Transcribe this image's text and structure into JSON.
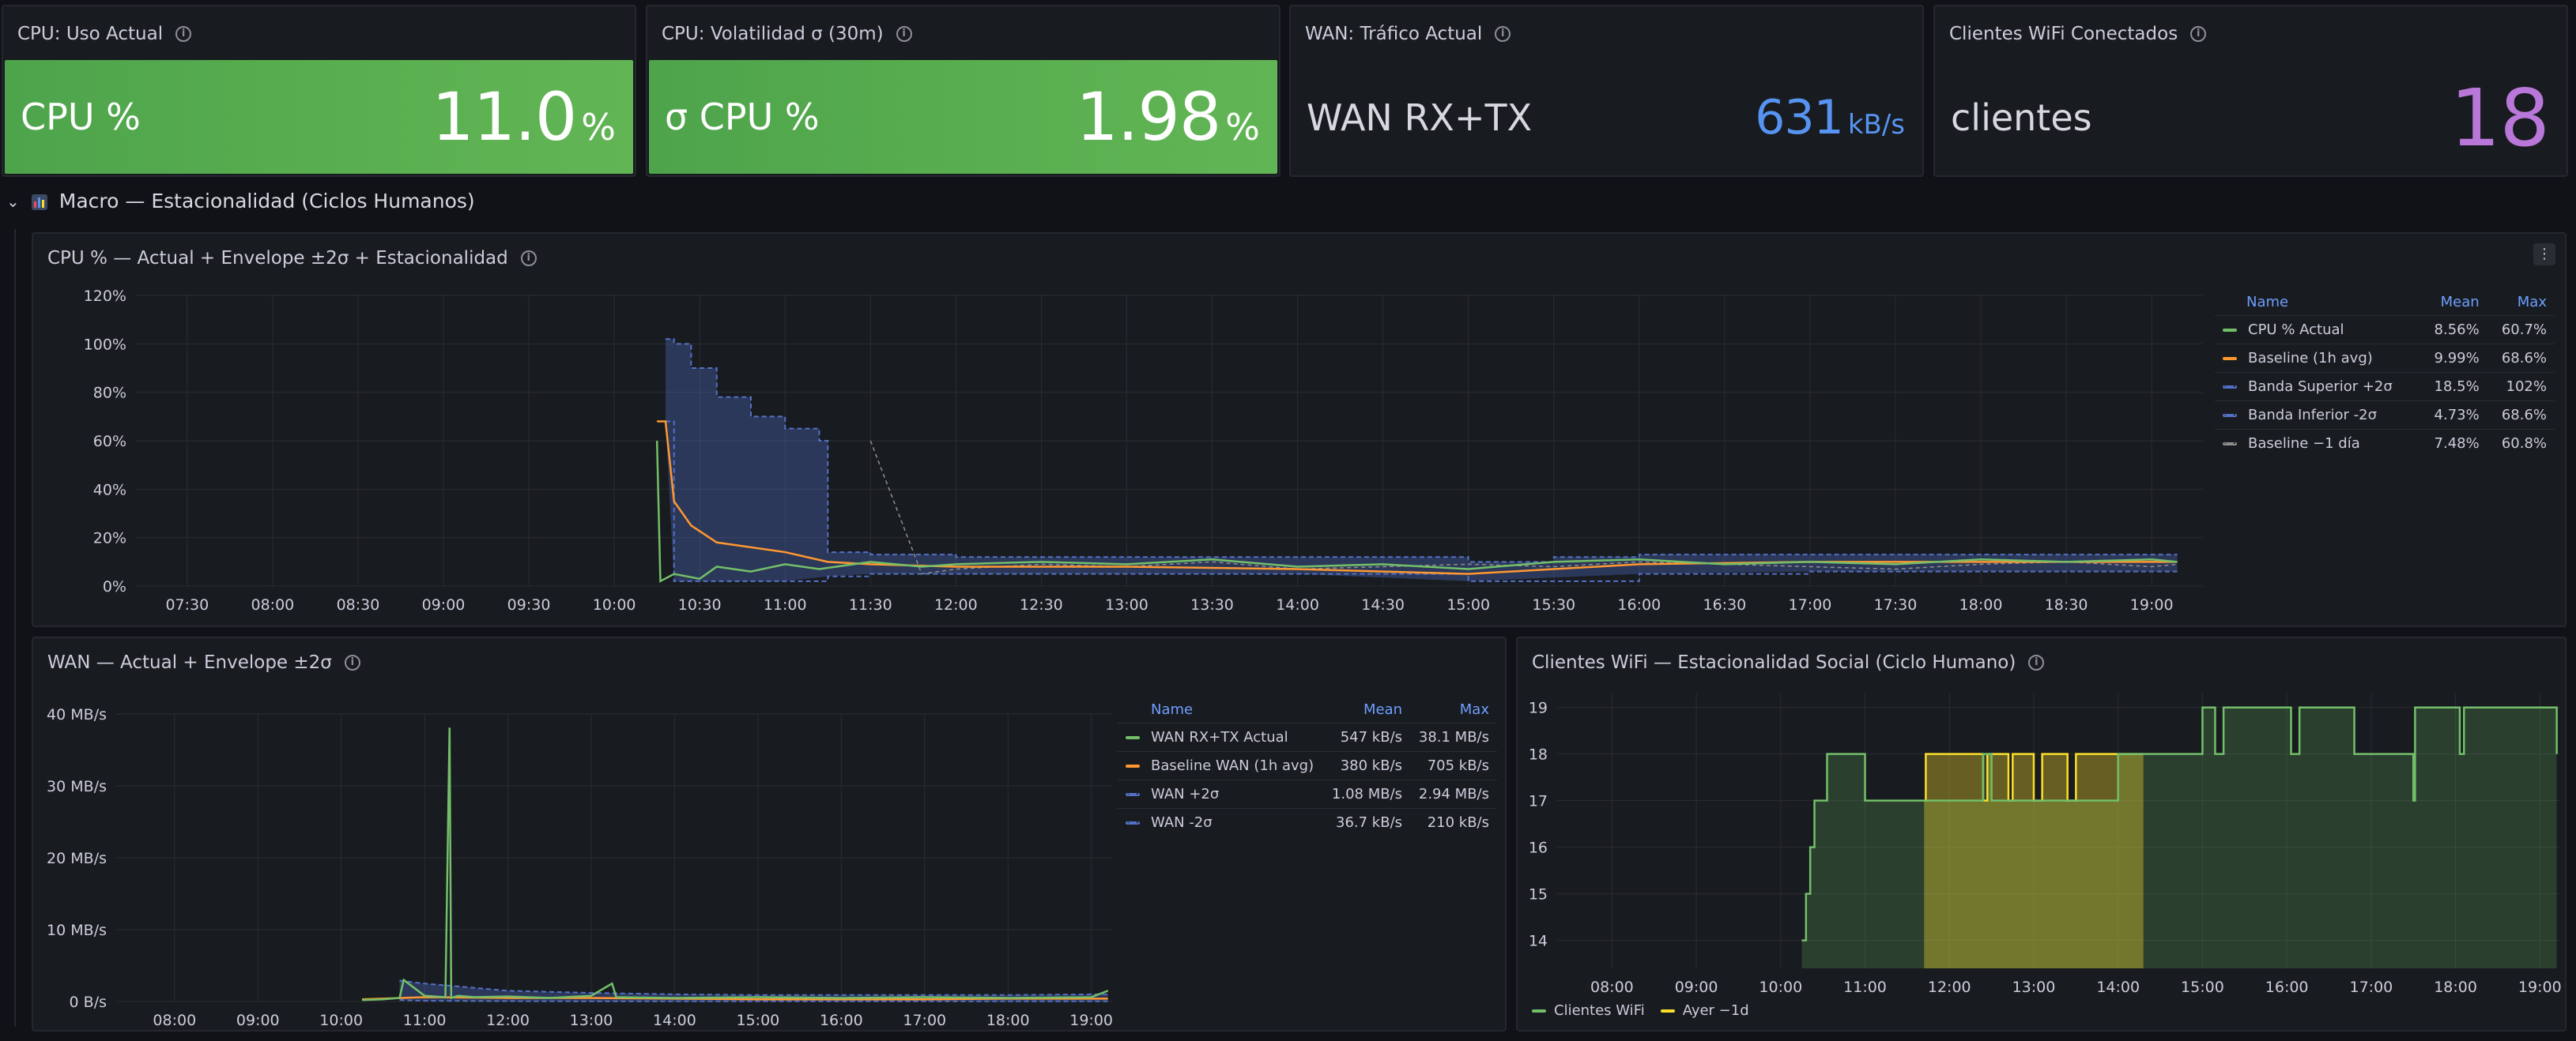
{
  "stats": [
    {
      "title": "CPU: Uso Actual",
      "label": "CPU %",
      "value": "11.0",
      "unit": "%"
    },
    {
      "title": "CPU: Volatilidad σ (30m)",
      "label": "σ CPU %",
      "value": "1.98",
      "unit": "%"
    },
    {
      "title": "WAN: Tráfico Actual",
      "label": "WAN RX+TX",
      "value": "631",
      "unit": "kB/s"
    },
    {
      "title": "Clientes WiFi Conectados",
      "label": "clientes",
      "value": "18",
      "unit": ""
    }
  ],
  "row": {
    "title": "Macro — Estacionalidad (Ciclos Humanos)"
  },
  "colors": {
    "green": "#73bf69",
    "orange": "#ff9830",
    "blue": "#5470c6",
    "gray": "#8e8e8e",
    "yellow": "#fade2a",
    "purple": "#b877d9",
    "wan_blue": "#5794f2"
  },
  "cpu_panel": {
    "title": "CPU % — Actual + Envelope ±2σ + Estacionalidad",
    "legend_headers": {
      "name": "Name",
      "mean": "Mean",
      "max": "Max"
    },
    "legend": [
      {
        "name": "CPU % Actual",
        "mean": "8.56%",
        "max": "60.7%"
      },
      {
        "name": "Baseline (1h avg)",
        "mean": "9.99%",
        "max": "68.6%"
      },
      {
        "name": "Banda Superior +2σ",
        "mean": "18.5%",
        "max": "102%"
      },
      {
        "name": "Banda Inferior -2σ",
        "mean": "4.73%",
        "max": "68.6%"
      },
      {
        "name": "Baseline −1 día",
        "mean": "7.48%",
        "max": "60.8%"
      }
    ]
  },
  "wan_panel": {
    "title": "WAN — Actual + Envelope ±2σ",
    "legend_headers": {
      "name": "Name",
      "mean": "Mean",
      "max": "Max"
    },
    "legend": [
      {
        "name": "WAN RX+TX Actual",
        "mean": "547 kB/s",
        "max": "38.1 MB/s"
      },
      {
        "name": "Baseline WAN (1h avg)",
        "mean": "380 kB/s",
        "max": "705 kB/s"
      },
      {
        "name": "WAN +2σ",
        "mean": "1.08 MB/s",
        "max": "2.94 MB/s"
      },
      {
        "name": "WAN -2σ",
        "mean": "36.7 kB/s",
        "max": "210 kB/s"
      }
    ]
  },
  "wifi_panel": {
    "title": "Clientes WiFi — Estacionalidad Social (Ciclo Humano)",
    "legend": [
      {
        "name": "Clientes WiFi"
      },
      {
        "name": "Ayer −1d"
      }
    ]
  },
  "chart_data": [
    {
      "type": "line",
      "y_ticks": [
        "0%",
        "20%",
        "40%",
        "60%",
        "80%",
        "100%",
        "120%"
      ],
      "ylim": [
        0,
        120
      ],
      "x_ticks": [
        "07:30",
        "08:00",
        "08:30",
        "09:00",
        "09:30",
        "10:00",
        "10:30",
        "11:00",
        "11:30",
        "12:00",
        "12:30",
        "13:00",
        "13:30",
        "14:00",
        "14:30",
        "15:00",
        "15:30",
        "16:00",
        "16:30",
        "17:00",
        "17:30",
        "18:00",
        "18:30",
        "19:00"
      ],
      "xlim_hours": [
        7.2,
        19.3
      ],
      "series": [
        {
          "name": "CPU % Actual",
          "x": [
            10.25,
            10.27,
            10.35,
            10.5,
            10.6,
            10.8,
            11.0,
            11.2,
            11.5,
            11.8,
            12.0,
            12.5,
            13.0,
            13.5,
            14.0,
            14.5,
            15.0,
            15.5,
            16.0,
            16.5,
            17.0,
            17.5,
            18.0,
            18.5,
            19.0,
            19.15
          ],
          "y": [
            60,
            2,
            5,
            3,
            8,
            6,
            9,
            7,
            10,
            8,
            9,
            10,
            9,
            11,
            8,
            9,
            7,
            10,
            11,
            9,
            10,
            9,
            11,
            10,
            11,
            10
          ]
        },
        {
          "name": "Baseline (1h avg)",
          "x": [
            10.25,
            10.3,
            10.35,
            10.45,
            10.6,
            11.0,
            11.25,
            11.5,
            12.0,
            13.0,
            14.0,
            14.5,
            15.0,
            15.5,
            16.0,
            17.0,
            18.0,
            19.0,
            19.15
          ],
          "y": [
            68,
            68,
            35,
            25,
            18,
            14,
            10,
            9,
            8,
            8,
            7,
            6,
            5,
            7,
            9,
            10,
            10,
            10,
            10
          ]
        },
        {
          "name": "Banda Superior +2σ",
          "x": [
            10.3,
            10.35,
            10.45,
            10.6,
            10.8,
            11.0,
            11.2,
            11.25,
            11.5,
            12.0,
            13.0,
            14.0,
            14.5,
            15.0,
            15.5,
            16.0,
            17.0,
            18.0,
            19.0,
            19.15
          ],
          "y": [
            102,
            100,
            90,
            78,
            70,
            65,
            60,
            14,
            13,
            12,
            12,
            12,
            12,
            10,
            12,
            13,
            13,
            13,
            13,
            13
          ]
        },
        {
          "name": "Banda Inferior -2σ",
          "x": [
            10.3,
            10.35,
            10.45,
            10.6,
            11.0,
            11.25,
            11.5,
            12.0,
            13.0,
            14.0,
            15.0,
            16.0,
            17.0,
            18.0,
            19.0,
            19.15
          ],
          "y": [
            68,
            2,
            2,
            2,
            2,
            4,
            5,
            5,
            5,
            5,
            2,
            5,
            6,
            6,
            6,
            6
          ]
        },
        {
          "name": "Baseline −1 día",
          "x": [
            11.5,
            11.8,
            12.0,
            12.5,
            13.0,
            13.5,
            14.0,
            14.5,
            15.0,
            15.5,
            16.0,
            16.5,
            17.0,
            17.5,
            18.0,
            18.5,
            19.0,
            19.15
          ],
          "y": [
            60,
            5,
            7,
            9,
            8,
            10,
            7,
            8,
            9,
            8,
            10,
            9,
            8,
            7,
            9,
            10,
            8,
            9
          ]
        }
      ]
    },
    {
      "type": "line",
      "y_ticks": [
        "0 B/s",
        "10 MB/s",
        "20 MB/s",
        "30 MB/s",
        "40 MB/s"
      ],
      "ylim": [
        0,
        40
      ],
      "x_ticks": [
        "08:00",
        "09:00",
        "10:00",
        "11:00",
        "12:00",
        "13:00",
        "14:00",
        "15:00",
        "16:00",
        "17:00",
        "18:00",
        "19:00"
      ],
      "xlim_hours": [
        7.3,
        19.25
      ],
      "series": [
        {
          "name": "WAN RX+TX Actual",
          "x": [
            10.25,
            10.5,
            10.7,
            10.75,
            11.0,
            11.25,
            11.3,
            11.32,
            11.4,
            11.6,
            12.0,
            12.5,
            13.0,
            13.25,
            13.3,
            14.0,
            15.0,
            16.0,
            17.0,
            18.0,
            19.0,
            19.2
          ],
          "y": [
            0.2,
            0.3,
            0.5,
            3.0,
            0.8,
            0.6,
            38.1,
            0.5,
            0.8,
            0.6,
            0.7,
            0.5,
            0.8,
            2.5,
            0.6,
            0.5,
            0.6,
            0.5,
            0.6,
            0.5,
            0.6,
            1.5
          ]
        },
        {
          "name": "Baseline WAN (1h avg)",
          "x": [
            10.25,
            11.0,
            12.0,
            13.0,
            14.0,
            15.0,
            16.0,
            17.0,
            18.0,
            19.0,
            19.2
          ],
          "y": [
            0.3,
            0.6,
            0.5,
            0.5,
            0.4,
            0.3,
            0.3,
            0.3,
            0.4,
            0.4,
            0.4
          ]
        },
        {
          "name": "WAN +2σ",
          "x": [
            10.7,
            11.0,
            11.5,
            12.0,
            13.0,
            14.0,
            15.0,
            16.0,
            17.0,
            18.0,
            19.0,
            19.2
          ],
          "y": [
            2.9,
            2.5,
            2.0,
            1.5,
            1.2,
            1.0,
            0.9,
            0.9,
            0.9,
            0.9,
            1.0,
            1.0
          ]
        },
        {
          "name": "WAN -2σ",
          "x": [
            10.7,
            11.0,
            12.0,
            13.0,
            14.0,
            15.0,
            16.0,
            17.0,
            18.0,
            19.0,
            19.2
          ],
          "y": [
            0.2,
            0.1,
            0.05,
            0.03,
            0.03,
            0.03,
            0.03,
            0.03,
            0.03,
            0.03,
            0.03
          ]
        }
      ]
    },
    {
      "type": "area",
      "y_ticks": [
        "14",
        "15",
        "16",
        "17",
        "18",
        "19"
      ],
      "ylim": [
        13.4,
        19.3
      ],
      "x_ticks": [
        "08:00",
        "09:00",
        "10:00",
        "11:00",
        "12:00",
        "13:00",
        "14:00",
        "15:00",
        "16:00",
        "17:00",
        "18:00",
        "19:00"
      ],
      "xlim_hours": [
        7.35,
        19.25
      ],
      "series": [
        {
          "name": "Clientes WiFi",
          "x": [
            10.25,
            10.3,
            10.35,
            10.4,
            10.45,
            10.55,
            10.6,
            11.0,
            11.7,
            12.4,
            12.5,
            14.0,
            15.0,
            15.15,
            15.25,
            16.0,
            16.05,
            16.15,
            16.6,
            16.8,
            17.5,
            17.52,
            18.0,
            18.05,
            18.1,
            19.2
          ],
          "y": [
            14,
            15,
            16,
            17,
            17,
            18,
            18,
            17,
            17,
            18,
            17,
            18,
            19,
            18,
            19,
            19,
            18,
            19,
            19,
            18,
            17,
            19,
            19,
            18,
            19,
            18
          ]
        },
        {
          "name": "Ayer −1d",
          "x": [
            11.7,
            11.72,
            12.4,
            12.45,
            12.6,
            12.7,
            12.75,
            12.8,
            13.0,
            13.1,
            13.4,
            13.5,
            14.0,
            14.3
          ],
          "y": [
            17,
            18,
            17,
            18,
            18,
            17,
            18,
            18,
            17,
            18,
            17,
            18,
            18,
            18
          ]
        }
      ]
    }
  ]
}
